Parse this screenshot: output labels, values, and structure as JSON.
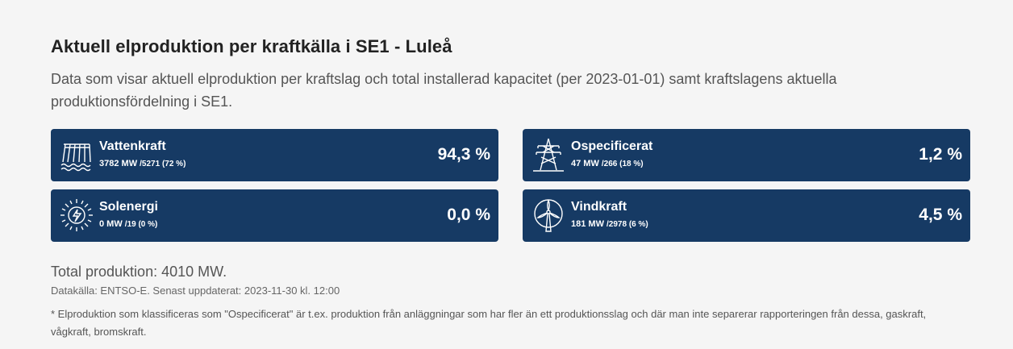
{
  "title": "Aktuell elproduktion per kraftkälla i SE1 - Luleå",
  "description": "Data som visar aktuell elproduktion per kraftslag och total installerad kapacitet (per 2023-01-01) samt kraftslagens aktuella produktionsfördelning i SE1.",
  "sources": [
    {
      "name": "Vattenkraft",
      "mw": "3782 MW",
      "cap": "/5271 (72 %)",
      "pct": "94,3 %",
      "icon": "hydropower-dam-icon"
    },
    {
      "name": "Ospecificerat",
      "mw": "47 MW",
      "cap": "/266 (18 %)",
      "pct": "1,2 %",
      "icon": "power-pylon-icon"
    },
    {
      "name": "Solenergi",
      "mw": "0 MW",
      "cap": "/19 (0 %)",
      "pct": "0,0 %",
      "icon": "sun-energy-icon"
    },
    {
      "name": "Vindkraft",
      "mw": "181 MW",
      "cap": "/2978 (6 %)",
      "pct": "4,5 %",
      "icon": "wind-turbine-icon"
    }
  ],
  "total": "Total produktion: 4010 MW.",
  "source": "Datakälla: ENTSO-E. Senast uppdaterat: 2023-11-30 kl. 12:00",
  "note": "* Elproduktion som klassificeras som \"Ospecificerat\" är t.ex. produktion från anläggningar som har fler än ett produktionsslag och där man inte separerar rapporteringen från dessa, gaskraft, vågkraft, bromskraft.",
  "colors": {
    "card_bg": "#163a64",
    "background": "#f5f5f5"
  }
}
